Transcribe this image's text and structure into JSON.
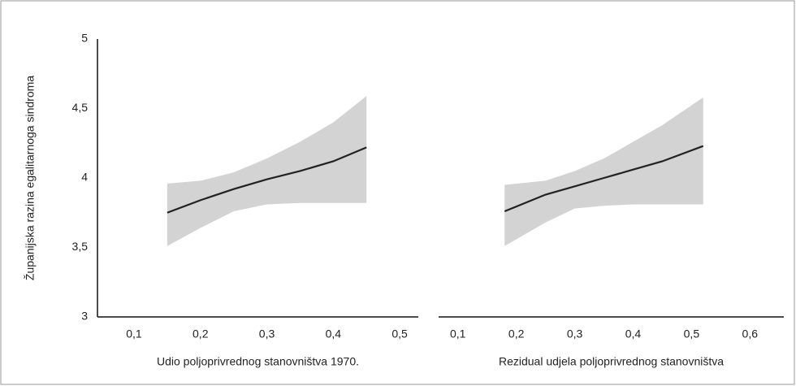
{
  "chart_data": [
    {
      "type": "line",
      "ylabel": "Županijska razina egalitarnoga sindroma",
      "xlabel": "Udio poljoprivrednog stanovništva 1970.",
      "x": [
        0.15,
        0.2,
        0.25,
        0.3,
        0.35,
        0.4,
        0.45
      ],
      "values": [
        3.75,
        3.84,
        3.92,
        3.99,
        4.05,
        4.12,
        4.22
      ],
      "ci_upper": [
        3.96,
        3.98,
        4.04,
        4.14,
        4.26,
        4.4,
        4.59
      ],
      "ci_lower": [
        3.51,
        3.64,
        3.76,
        3.81,
        3.82,
        3.82,
        3.82
      ],
      "color": "#222222",
      "band_color": "#d3d3d3",
      "xlim": [
        0.045,
        0.528
      ],
      "xticks": [
        {
          "value": 0.1,
          "label": "0,1"
        },
        {
          "value": 0.2,
          "label": "0,2"
        },
        {
          "value": 0.3,
          "label": "0,3"
        },
        {
          "value": 0.4,
          "label": "0,4"
        },
        {
          "value": 0.5,
          "label": "0,5"
        }
      ],
      "ylim": [
        3,
        5
      ],
      "yticks": [
        3,
        {
          "value": 3.5,
          "label": "3,5"
        },
        4,
        {
          "value": 4.5,
          "label": "4,5"
        },
        5
      ]
    },
    {
      "type": "line",
      "xlabel": "Rezidual udjela poljoprivrednog stanovništva",
      "x": [
        0.18,
        0.25,
        0.3,
        0.35,
        0.4,
        0.45,
        0.52
      ],
      "values": [
        3.76,
        3.88,
        3.94,
        4.0,
        4.06,
        4.12,
        4.23
      ],
      "ci_upper": [
        3.95,
        3.98,
        4.05,
        4.14,
        4.26,
        4.38,
        4.58
      ],
      "ci_lower": [
        3.51,
        3.68,
        3.78,
        3.8,
        3.81,
        3.81,
        3.81
      ],
      "color": "#222222",
      "band_color": "#d3d3d3",
      "xlim": [
        0.067,
        0.658
      ],
      "xticks": [
        {
          "value": 0.1,
          "label": "0,1"
        },
        {
          "value": 0.2,
          "label": "0,2"
        },
        {
          "value": 0.3,
          "label": "0,3"
        },
        {
          "value": 0.4,
          "label": "0,4"
        },
        {
          "value": 0.5,
          "label": "0,5"
        },
        {
          "value": 0.6,
          "label": "0,6"
        }
      ],
      "ylim": [
        3,
        5
      ]
    }
  ]
}
